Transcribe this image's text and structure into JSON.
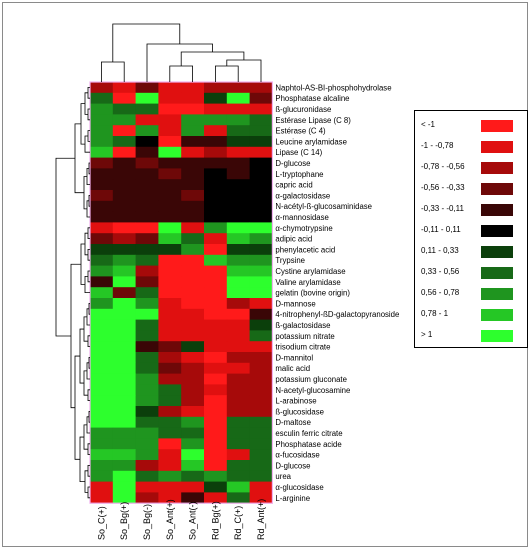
{
  "chart_data": {
    "type": "heatmap",
    "columns": [
      "So_C(+)",
      "So_Bg(+)",
      "So_Bg(-)",
      "So_Ant(+)",
      "So_Ant(-)",
      "Rd_Bg(+)",
      "Rd_C(+)",
      "Rd_Ant(+)"
    ],
    "rows": [
      "Naphtol-AS-BI-phosphohydrolase",
      "Phosphatase alcaline",
      "ß-glucuronidase",
      "Estérase Lipase (C 8)",
      "Estérase (C 4)",
      "Leucine arylamidase",
      "Lipase (C 14)",
      "D-glucose",
      "L-tryptophane",
      "capric acid",
      "α-galactosidase",
      "N-acétyl-ß-glucosaminidase",
      "α-mannosidase",
      "α-chymotrypsine",
      "adipic acid",
      "phenylacetic acid",
      "Trypsine",
      "Cystine arylamidase",
      "Valine arylamidase",
      "gelatin (bovine origin)",
      "D-mannose",
      "4-nitrophenyl-ßD-galactopyranoside",
      "ß-galactosidase",
      "potassium nitrate",
      "trisodium citrate",
      "D-mannitol",
      "malic acid",
      "potassium gluconate",
      "N-acetyl-glucosamine",
      "L-arabinose",
      "ß-glucosidase",
      "D-maltose",
      "esculin ferric citrate",
      "Phosphatase acide",
      "α-fucosidase",
      "D-glucose",
      "urea",
      "α-glucosidase",
      "L-arginine"
    ],
    "values": [
      [
        -0.7,
        -0.9,
        -0.5,
        -0.8,
        -0.8,
        -0.6,
        -0.6,
        -0.6
      ],
      [
        0.4,
        -1.1,
        1.1,
        -0.9,
        -0.9,
        0.3,
        1.2,
        -0.5
      ],
      [
        0.6,
        0.4,
        0.5,
        -1.1,
        -1.1,
        -0.9,
        -0.9,
        -0.9
      ],
      [
        0.6,
        0.6,
        -0.9,
        -0.9,
        0.6,
        0.6,
        0.6,
        0.5
      ],
      [
        0.6,
        -1.1,
        0.6,
        -0.9,
        0.6,
        -0.9,
        0.5,
        0.5
      ],
      [
        0.7,
        0.5,
        -0.1,
        -1.1,
        -0.2,
        -0.2,
        0.3,
        0.3
      ],
      [
        0.9,
        -1.1,
        -0.3,
        1.1,
        -0.8,
        -0.6,
        -0.9,
        -0.9
      ],
      [
        -0.5,
        -0.2,
        -0.5,
        -0.2,
        -0.3,
        -0.3,
        -0.2,
        -0.1
      ],
      [
        -0.3,
        -0.2,
        -0.2,
        -0.4,
        -0.2,
        -0.1,
        -0.2,
        -0.1
      ],
      [
        -0.2,
        -0.2,
        -0.3,
        -0.2,
        -0.3,
        -0.1,
        -0.1,
        -0.1
      ],
      [
        -0.4,
        -0.3,
        -0.2,
        -0.3,
        -0.5,
        -0.1,
        -0.1,
        -0.1
      ],
      [
        -0.3,
        -0.2,
        -0.3,
        -0.2,
        -0.2,
        -0.1,
        -0.1,
        -0.1
      ],
      [
        -0.2,
        -0.3,
        -0.2,
        -0.2,
        -0.3,
        -0.1,
        -0.1,
        -0.1
      ],
      [
        -0.9,
        -1.1,
        -1.1,
        1.1,
        -0.9,
        0.6,
        1.1,
        1.1
      ],
      [
        -0.4,
        -0.7,
        -0.5,
        0.9,
        0.4,
        -0.9,
        0.9,
        0.6
      ],
      [
        0.3,
        0.2,
        0.3,
        0.3,
        0.6,
        -1.1,
        0.3,
        0.2
      ],
      [
        0.5,
        0.6,
        0.4,
        -1.1,
        -1.1,
        0.9,
        0.6,
        0.6
      ],
      [
        0.7,
        0.9,
        -0.6,
        -1.1,
        -1.1,
        -1.1,
        0.9,
        0.9
      ],
      [
        -0.3,
        1.1,
        -0.4,
        -1.1,
        -1.1,
        -1.1,
        1.1,
        1.1
      ],
      [
        0.9,
        -0.5,
        0.5,
        -1.1,
        -1.1,
        -1.1,
        1.1,
        1.1
      ],
      [
        0.6,
        1.2,
        0.6,
        -0.9,
        -1.1,
        -1.1,
        -0.7,
        -0.8
      ],
      [
        1.1,
        1.2,
        1.1,
        -0.9,
        -0.9,
        -1.1,
        -1.1,
        -0.2
      ],
      [
        1.2,
        1.2,
        0.4,
        -0.9,
        -1.0,
        -1.0,
        -0.9,
        0.3
      ],
      [
        1.2,
        1.2,
        0.4,
        -0.8,
        -0.8,
        -0.9,
        -0.8,
        0.4
      ],
      [
        1.2,
        1.2,
        -0.2,
        -0.5,
        0.2,
        -0.9,
        -1.0,
        -0.9
      ],
      [
        1.2,
        1.2,
        0.5,
        -0.7,
        -0.8,
        -1.1,
        -0.6,
        -0.6
      ],
      [
        1.2,
        1.2,
        0.4,
        -0.5,
        -0.7,
        -0.9,
        -0.8,
        -0.7
      ],
      [
        1.2,
        1.2,
        0.6,
        -0.6,
        -0.6,
        -1.1,
        -0.6,
        -0.6
      ],
      [
        1.2,
        1.2,
        0.6,
        0.4,
        -0.6,
        -1.0,
        -0.6,
        -0.6
      ],
      [
        1.2,
        1.2,
        0.6,
        0.4,
        -0.7,
        -1.1,
        -0.6,
        -0.6
      ],
      [
        1.2,
        1.2,
        0.3,
        -0.6,
        -0.8,
        -1.1,
        -0.7,
        -0.7
      ],
      [
        1.2,
        1.2,
        0.5,
        0.5,
        0.6,
        -1.1,
        0.4,
        0.4
      ],
      [
        0.6,
        0.6,
        0.6,
        0.5,
        0.5,
        -1.1,
        0.4,
        0.4
      ],
      [
        0.6,
        0.6,
        0.6,
        -1.1,
        0.6,
        -1.1,
        0.4,
        0.4
      ],
      [
        0.9,
        0.8,
        0.6,
        -0.9,
        1.1,
        -1.1,
        -0.8,
        0.4
      ],
      [
        0.6,
        0.6,
        -0.6,
        -0.8,
        0.9,
        -1.1,
        0.4,
        0.4
      ],
      [
        0.6,
        1.1,
        0.5,
        0.6,
        0.5,
        0.6,
        0.4,
        0.4
      ],
      [
        -0.8,
        1.1,
        -0.9,
        -0.8,
        -0.9,
        0.2,
        0.8,
        -0.9
      ],
      [
        -0.8,
        1.1,
        -0.7,
        -0.8,
        -0.2,
        -0.8,
        0.4,
        -0.8
      ]
    ],
    "legend": [
      {
        "label": "< -1",
        "color": "#ff1a1a"
      },
      {
        "label": "-1 - -0,78",
        "color": "#e01010"
      },
      {
        "label": "-0,78 - -0,56",
        "color": "#a60a0a"
      },
      {
        "label": "-0,56 - -0,33",
        "color": "#6e0808"
      },
      {
        "label": "-0,33 - -0,11",
        "color": "#3a0606"
      },
      {
        "label": "-0,11 - 0,11",
        "color": "#000000"
      },
      {
        "label": "0,11 - 0,33",
        "color": "#0b3f0b"
      },
      {
        "label": "0,33 - 0,56",
        "color": "#176917"
      },
      {
        "label": "0,56 - 0,78",
        "color": "#1f951f"
      },
      {
        "label": "0,78 - 1",
        "color": "#25c725"
      },
      {
        "label": "> 1",
        "color": "#2dff2d"
      }
    ]
  }
}
